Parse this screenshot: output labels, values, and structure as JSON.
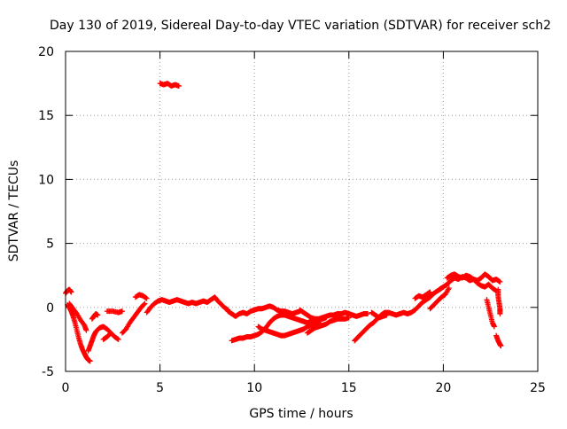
{
  "chart_data": {
    "type": "scatter",
    "title": "Day 130 of 2019, Sidereal Day-to-day VTEC variation (SDTVAR) for receiver sch2",
    "xlabel": "GPS time / hours",
    "ylabel": "SDTVAR / TECUs",
    "xlim": [
      0,
      25
    ],
    "ylim": [
      -5,
      20
    ],
    "xticks": [
      0,
      5,
      10,
      15,
      20,
      25
    ],
    "yticks": [
      -5,
      0,
      5,
      10,
      15,
      20
    ],
    "xtick_labels": [
      "0",
      "5",
      "10",
      "15",
      "20",
      "25"
    ],
    "ytick_labels": [
      "-5",
      "0",
      "5",
      "10",
      "15",
      "20"
    ],
    "grid": true,
    "marker": "+",
    "color": "#ff0000",
    "series": [
      {
        "name": "sch2",
        "segments": [
          [
            [
              0.0,
              1.1
            ],
            [
              0.1,
              1.3
            ],
            [
              0.2,
              1.4
            ],
            [
              0.3,
              1.2
            ]
          ],
          [
            [
              0.1,
              0.2
            ],
            [
              0.2,
              0.0
            ],
            [
              0.3,
              -0.3
            ],
            [
              0.4,
              -0.7
            ],
            [
              0.5,
              -1.2
            ],
            [
              0.6,
              -1.8
            ],
            [
              0.7,
              -2.4
            ],
            [
              0.8,
              -2.9
            ],
            [
              0.9,
              -3.3
            ],
            [
              1.0,
              -3.6
            ],
            [
              1.1,
              -3.9
            ],
            [
              1.2,
              -4.1
            ],
            [
              1.3,
              -4.2
            ]
          ],
          [
            [
              0.2,
              0.3
            ],
            [
              0.4,
              -0.1
            ],
            [
              0.6,
              -0.5
            ],
            [
              0.8,
              -1.0
            ],
            [
              1.0,
              -1.4
            ],
            [
              1.1,
              -1.8
            ]
          ],
          [
            [
              1.2,
              -3.4
            ],
            [
              1.3,
              -3.0
            ],
            [
              1.4,
              -2.6
            ],
            [
              1.5,
              -2.2
            ],
            [
              1.6,
              -1.9
            ],
            [
              1.8,
              -1.6
            ],
            [
              2.0,
              -1.5
            ],
            [
              2.2,
              -1.7
            ],
            [
              2.4,
              -2.0
            ],
            [
              2.6,
              -2.3
            ],
            [
              2.8,
              -2.5
            ]
          ],
          [
            [
              1.4,
              -0.9
            ],
            [
              1.5,
              -0.7
            ],
            [
              1.6,
              -0.5
            ],
            [
              1.7,
              -0.6
            ]
          ],
          [
            [
              2.0,
              -2.5
            ],
            [
              2.2,
              -2.3
            ],
            [
              2.4,
              -2.0
            ]
          ],
          [
            [
              2.2,
              -0.3
            ],
            [
              2.5,
              -0.3
            ],
            [
              2.8,
              -0.4
            ],
            [
              3.0,
              -0.3
            ]
          ],
          [
            [
              3.0,
              -2.0
            ],
            [
              3.2,
              -1.7
            ],
            [
              3.4,
              -1.2
            ],
            [
              3.6,
              -0.8
            ],
            [
              3.8,
              -0.4
            ],
            [
              4.0,
              0.0
            ],
            [
              4.2,
              0.3
            ]
          ],
          [
            [
              3.7,
              0.8
            ],
            [
              3.9,
              1.0
            ],
            [
              4.1,
              0.9
            ],
            [
              4.3,
              0.7
            ]
          ],
          [
            [
              4.3,
              -0.4
            ],
            [
              4.5,
              0.0
            ],
            [
              4.7,
              0.3
            ],
            [
              4.9,
              0.5
            ],
            [
              5.1,
              0.6
            ],
            [
              5.3,
              0.5
            ],
            [
              5.5,
              0.4
            ],
            [
              5.7,
              0.5
            ],
            [
              5.9,
              0.6
            ],
            [
              6.1,
              0.5
            ],
            [
              6.3,
              0.4
            ],
            [
              6.5,
              0.3
            ],
            [
              6.7,
              0.4
            ],
            [
              6.9,
              0.3
            ],
            [
              7.1,
              0.4
            ],
            [
              7.3,
              0.5
            ],
            [
              7.5,
              0.4
            ],
            [
              7.7,
              0.6
            ],
            [
              7.9,
              0.8
            ],
            [
              8.0,
              0.6
            ],
            [
              8.2,
              0.3
            ],
            [
              8.4,
              0.0
            ],
            [
              8.6,
              -0.2
            ]
          ],
          [
            [
              5.0,
              17.5
            ],
            [
              5.2,
              17.4
            ],
            [
              5.4,
              17.5
            ],
            [
              5.6,
              17.3
            ],
            [
              5.8,
              17.4
            ],
            [
              6.0,
              17.3
            ]
          ],
          [
            [
              8.6,
              -0.3
            ],
            [
              8.8,
              -0.5
            ],
            [
              9.0,
              -0.7
            ],
            [
              9.2,
              -0.5
            ],
            [
              9.4,
              -0.4
            ],
            [
              9.6,
              -0.5
            ],
            [
              9.8,
              -0.3
            ],
            [
              10.0,
              -0.2
            ],
            [
              10.2,
              -0.1
            ],
            [
              10.4,
              -0.1
            ],
            [
              10.6,
              0.0
            ],
            [
              10.8,
              0.1
            ],
            [
              11.0,
              0.0
            ],
            [
              11.2,
              -0.2
            ],
            [
              11.4,
              -0.3
            ],
            [
              11.6,
              -0.3
            ],
            [
              11.8,
              -0.4
            ],
            [
              12.0,
              -0.5
            ],
            [
              12.2,
              -0.4
            ],
            [
              12.4,
              -0.3
            ]
          ],
          [
            [
              8.8,
              -2.6
            ],
            [
              9.0,
              -2.5
            ],
            [
              9.2,
              -2.4
            ],
            [
              9.4,
              -2.4
            ],
            [
              9.6,
              -2.3
            ],
            [
              9.8,
              -2.3
            ],
            [
              10.0,
              -2.2
            ],
            [
              10.2,
              -2.1
            ],
            [
              10.4,
              -1.9
            ],
            [
              10.6,
              -1.6
            ],
            [
              10.8,
              -1.2
            ],
            [
              11.0,
              -0.9
            ],
            [
              11.2,
              -0.7
            ],
            [
              11.4,
              -0.6
            ],
            [
              11.6,
              -0.6
            ],
            [
              11.8,
              -0.7
            ],
            [
              12.0,
              -0.8
            ],
            [
              12.2,
              -0.9
            ],
            [
              12.4,
              -1.0
            ],
            [
              12.6,
              -1.1
            ],
            [
              12.8,
              -1.2
            ],
            [
              13.0,
              -1.1
            ],
            [
              13.2,
              -1.0
            ],
            [
              13.4,
              -1.0
            ],
            [
              13.6,
              -0.9
            ],
            [
              13.8,
              -0.8
            ]
          ],
          [
            [
              10.2,
              -1.5
            ],
            [
              10.4,
              -1.7
            ],
            [
              10.6,
              -1.8
            ],
            [
              10.8,
              -1.9
            ],
            [
              11.0,
              -2.0
            ],
            [
              11.2,
              -2.1
            ],
            [
              11.4,
              -2.2
            ],
            [
              11.6,
              -2.2
            ],
            [
              11.8,
              -2.1
            ],
            [
              12.0,
              -2.0
            ],
            [
              12.2,
              -1.9
            ],
            [
              12.4,
              -1.8
            ],
            [
              12.6,
              -1.7
            ],
            [
              12.8,
              -1.5
            ],
            [
              13.0,
              -1.4
            ],
            [
              13.2,
              -1.3
            ],
            [
              13.4,
              -1.2
            ]
          ],
          [
            [
              12.4,
              -0.2
            ],
            [
              12.6,
              -0.4
            ],
            [
              12.8,
              -0.6
            ],
            [
              13.0,
              -0.8
            ],
            [
              13.2,
              -0.9
            ],
            [
              13.4,
              -0.9
            ],
            [
              13.6,
              -0.8
            ],
            [
              13.8,
              -0.7
            ],
            [
              14.0,
              -0.6
            ],
            [
              14.2,
              -0.6
            ],
            [
              14.4,
              -0.5
            ],
            [
              14.6,
              -0.5
            ],
            [
              14.8,
              -0.4
            ],
            [
              15.0,
              -0.5
            ],
            [
              15.2,
              -0.6
            ],
            [
              15.4,
              -0.7
            ],
            [
              15.6,
              -0.6
            ],
            [
              15.8,
              -0.5
            ],
            [
              16.0,
              -0.5
            ]
          ],
          [
            [
              12.8,
              -2.0
            ],
            [
              13.0,
              -1.8
            ],
            [
              13.2,
              -1.6
            ],
            [
              13.4,
              -1.5
            ],
            [
              13.6,
              -1.4
            ],
            [
              13.8,
              -1.3
            ],
            [
              14.0,
              -1.1
            ],
            [
              14.2,
              -1.0
            ],
            [
              14.4,
              -0.9
            ],
            [
              14.6,
              -0.9
            ],
            [
              14.8,
              -0.9
            ],
            [
              15.0,
              -0.8
            ]
          ],
          [
            [
              15.3,
              -2.6
            ],
            [
              15.5,
              -2.3
            ],
            [
              15.7,
              -2.0
            ],
            [
              15.9,
              -1.7
            ],
            [
              16.1,
              -1.4
            ],
            [
              16.3,
              -1.2
            ],
            [
              16.5,
              -0.9
            ],
            [
              16.7,
              -0.6
            ],
            [
              16.9,
              -0.4
            ],
            [
              17.1,
              -0.4
            ],
            [
              17.3,
              -0.5
            ],
            [
              17.5,
              -0.6
            ],
            [
              17.7,
              -0.5
            ],
            [
              17.9,
              -0.4
            ],
            [
              18.1,
              -0.5
            ],
            [
              18.3,
              -0.4
            ],
            [
              18.5,
              -0.2
            ],
            [
              18.7,
              0.1
            ],
            [
              18.9,
              0.4
            ],
            [
              19.1,
              0.6
            ],
            [
              19.3,
              0.8
            ],
            [
              19.5,
              1.1
            ],
            [
              19.7,
              1.3
            ],
            [
              19.9,
              1.5
            ]
          ],
          [
            [
              16.2,
              -0.4
            ],
            [
              16.4,
              -0.6
            ],
            [
              16.6,
              -0.8
            ],
            [
              16.8,
              -0.7
            ],
            [
              17.0,
              -0.6
            ]
          ],
          [
            [
              18.5,
              0.7
            ],
            [
              18.7,
              0.9
            ],
            [
              18.9,
              0.8
            ],
            [
              19.1,
              1.0
            ],
            [
              19.3,
              1.2
            ]
          ],
          [
            [
              19.3,
              -0.1
            ],
            [
              19.5,
              0.2
            ],
            [
              19.7,
              0.5
            ],
            [
              19.9,
              0.8
            ],
            [
              20.1,
              1.0
            ],
            [
              20.3,
              1.5
            ]
          ],
          [
            [
              19.8,
              1.4
            ],
            [
              20.0,
              1.6
            ],
            [
              20.2,
              1.8
            ],
            [
              20.4,
              2.1
            ],
            [
              20.6,
              2.3
            ],
            [
              20.8,
              2.2
            ],
            [
              21.0,
              2.4
            ],
            [
              21.2,
              2.3
            ],
            [
              21.4,
              2.1
            ],
            [
              21.6,
              2.2
            ],
            [
              21.8,
              1.9
            ],
            [
              22.0,
              1.7
            ],
            [
              22.2,
              1.6
            ],
            [
              22.4,
              1.8
            ],
            [
              22.6,
              1.5
            ],
            [
              22.8,
              1.3
            ]
          ],
          [
            [
              20.2,
              2.3
            ],
            [
              20.4,
              2.5
            ],
            [
              20.6,
              2.6
            ],
            [
              20.8,
              2.4
            ],
            [
              21.0,
              2.3
            ],
            [
              21.2,
              2.5
            ],
            [
              21.4,
              2.4
            ],
            [
              21.6,
              2.2
            ],
            [
              21.8,
              2.1
            ],
            [
              22.0,
              2.3
            ],
            [
              22.2,
              2.6
            ],
            [
              22.4,
              2.4
            ],
            [
              22.6,
              2.1
            ],
            [
              22.8,
              2.2
            ],
            [
              23.0,
              2.0
            ]
          ],
          [
            [
              22.3,
              0.6
            ],
            [
              22.4,
              0.0
            ],
            [
              22.5,
              -0.6
            ],
            [
              22.6,
              -1.2
            ],
            [
              22.7,
              -1.5
            ]
          ],
          [
            [
              22.9,
              1.4
            ],
            [
              22.9,
              0.9
            ],
            [
              22.95,
              0.4
            ],
            [
              23.0,
              -0.1
            ],
            [
              23.0,
              -0.5
            ]
          ],
          [
            [
              22.8,
              -2.2
            ],
            [
              22.9,
              -2.6
            ],
            [
              23.0,
              -2.9
            ],
            [
              23.05,
              -3.0
            ]
          ]
        ]
      }
    ]
  }
}
